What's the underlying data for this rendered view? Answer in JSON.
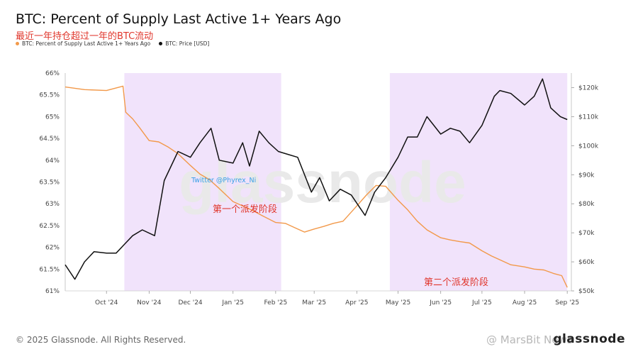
{
  "header": {
    "title": "BTC: Percent of Supply Last Active 1+ Years Ago",
    "subtitle": "最近一年持仓超过一年的BTC流动"
  },
  "footer": {
    "copyright": "© 2025 Glassnode. All Rights Reserved.",
    "brand": "glassnode",
    "social_watermark": "@ MarsBit News"
  },
  "chart_data": {
    "type": "line",
    "title": "BTC: Percent of Supply Last Active 1+ Years Ago",
    "subtitle": "最近一年持仓超过一年的BTC流动",
    "legend_position": "top-left",
    "grid": false,
    "colors": {
      "supply": "#f2994a",
      "price": "#111111",
      "shade": "#f1e3fb"
    },
    "x_ticks": [
      "Oct '24",
      "Nov '24",
      "Dec '24",
      "Jan '25",
      "Feb '25",
      "Mar '25",
      "Apr '25",
      "May '25",
      "Jun '25",
      "Jul '25",
      "Aug '25",
      "Sep '25"
    ],
    "y_left": {
      "ticks": [
        "66%",
        "65.5%",
        "65%",
        "64.5%",
        "64%",
        "63.5%",
        "63%",
        "62.5%",
        "62%",
        "61.5%",
        "61%"
      ],
      "range": [
        61,
        66
      ]
    },
    "y_right": {
      "ticks": [
        "$120k",
        "$110k",
        "$100k",
        "$90k",
        "$80k",
        "$70k",
        "$60k",
        "$50k"
      ],
      "range": [
        50000,
        125000
      ]
    },
    "annotations": {
      "phase1": "第一个派发阶段",
      "phase2": "第二个派发阶段",
      "twitter": "Twitter @Phyrex_Ni"
    },
    "shaded_regions": [
      {
        "start": "2024-10-14",
        "end": "2025-02-05",
        "label": "第一个派发阶段"
      },
      {
        "start": "2025-04-25",
        "end": "2025-09-01",
        "label": "第二个派发阶段"
      }
    ],
    "series": [
      {
        "name": "BTC: Percent of Supply Last Active 1+ Years Ago",
        "axis": "left",
        "x": [
          "2024-09-01",
          "2024-09-15",
          "2024-10-01",
          "2024-10-13",
          "2024-10-15",
          "2024-10-20",
          "2024-10-25",
          "2024-11-01",
          "2024-11-08",
          "2024-11-15",
          "2024-11-22",
          "2024-12-01",
          "2024-12-08",
          "2024-12-15",
          "2024-12-22",
          "2025-01-01",
          "2025-01-08",
          "2025-01-15",
          "2025-01-22",
          "2025-02-01",
          "2025-02-08",
          "2025-02-15",
          "2025-02-22",
          "2025-03-01",
          "2025-03-08",
          "2025-03-15",
          "2025-03-22",
          "2025-04-01",
          "2025-04-08",
          "2025-04-15",
          "2025-04-22",
          "2025-05-01",
          "2025-05-08",
          "2025-05-15",
          "2025-05-22",
          "2025-06-01",
          "2025-06-08",
          "2025-06-15",
          "2025-06-22",
          "2025-07-01",
          "2025-07-08",
          "2025-07-15",
          "2025-07-22",
          "2025-08-01",
          "2025-08-08",
          "2025-08-15",
          "2025-08-22",
          "2025-08-28",
          "2025-09-01"
        ],
        "values": [
          65.68,
          65.62,
          65.6,
          65.7,
          65.1,
          64.95,
          64.75,
          64.45,
          64.42,
          64.3,
          64.15,
          63.88,
          63.68,
          63.55,
          63.35,
          63.05,
          62.95,
          62.85,
          62.73,
          62.57,
          62.55,
          62.45,
          62.35,
          62.42,
          62.48,
          62.55,
          62.6,
          62.95,
          63.2,
          63.42,
          63.4,
          63.08,
          62.86,
          62.6,
          62.4,
          62.22,
          62.17,
          62.13,
          62.1,
          61.92,
          61.8,
          61.7,
          61.6,
          61.55,
          61.5,
          61.48,
          61.4,
          61.35,
          61.08
        ]
      },
      {
        "name": "BTC: Price [USD]",
        "axis": "right",
        "x": [
          "2024-09-01",
          "2024-09-08",
          "2024-09-15",
          "2024-09-22",
          "2024-10-01",
          "2024-10-08",
          "2024-10-14",
          "2024-10-20",
          "2024-10-27",
          "2024-11-05",
          "2024-11-12",
          "2024-11-22",
          "2024-12-01",
          "2024-12-08",
          "2024-12-16",
          "2024-12-22",
          "2025-01-01",
          "2025-01-08",
          "2025-01-13",
          "2025-01-20",
          "2025-01-27",
          "2025-02-03",
          "2025-02-10",
          "2025-02-17",
          "2025-02-27",
          "2025-03-05",
          "2025-03-12",
          "2025-03-20",
          "2025-03-28",
          "2025-04-07",
          "2025-04-14",
          "2025-04-22",
          "2025-05-01",
          "2025-05-08",
          "2025-05-15",
          "2025-05-22",
          "2025-06-01",
          "2025-06-08",
          "2025-06-15",
          "2025-06-22",
          "2025-07-01",
          "2025-07-10",
          "2025-07-14",
          "2025-07-22",
          "2025-08-01",
          "2025-08-08",
          "2025-08-14",
          "2025-08-20",
          "2025-08-27",
          "2025-09-01"
        ],
        "values": [
          59000,
          54000,
          60000,
          63500,
          63000,
          63000,
          66000,
          69000,
          71000,
          69000,
          88000,
          98000,
          96000,
          101000,
          106000,
          95000,
          94000,
          101000,
          93000,
          105000,
          101000,
          98000,
          97000,
          96000,
          84000,
          89000,
          81000,
          85000,
          83000,
          76000,
          84000,
          89000,
          96000,
          103000,
          103000,
          110000,
          104000,
          106000,
          105000,
          101000,
          107000,
          117000,
          119000,
          118000,
          114000,
          117000,
          123000,
          113000,
          110000,
          109000
        ]
      }
    ]
  }
}
